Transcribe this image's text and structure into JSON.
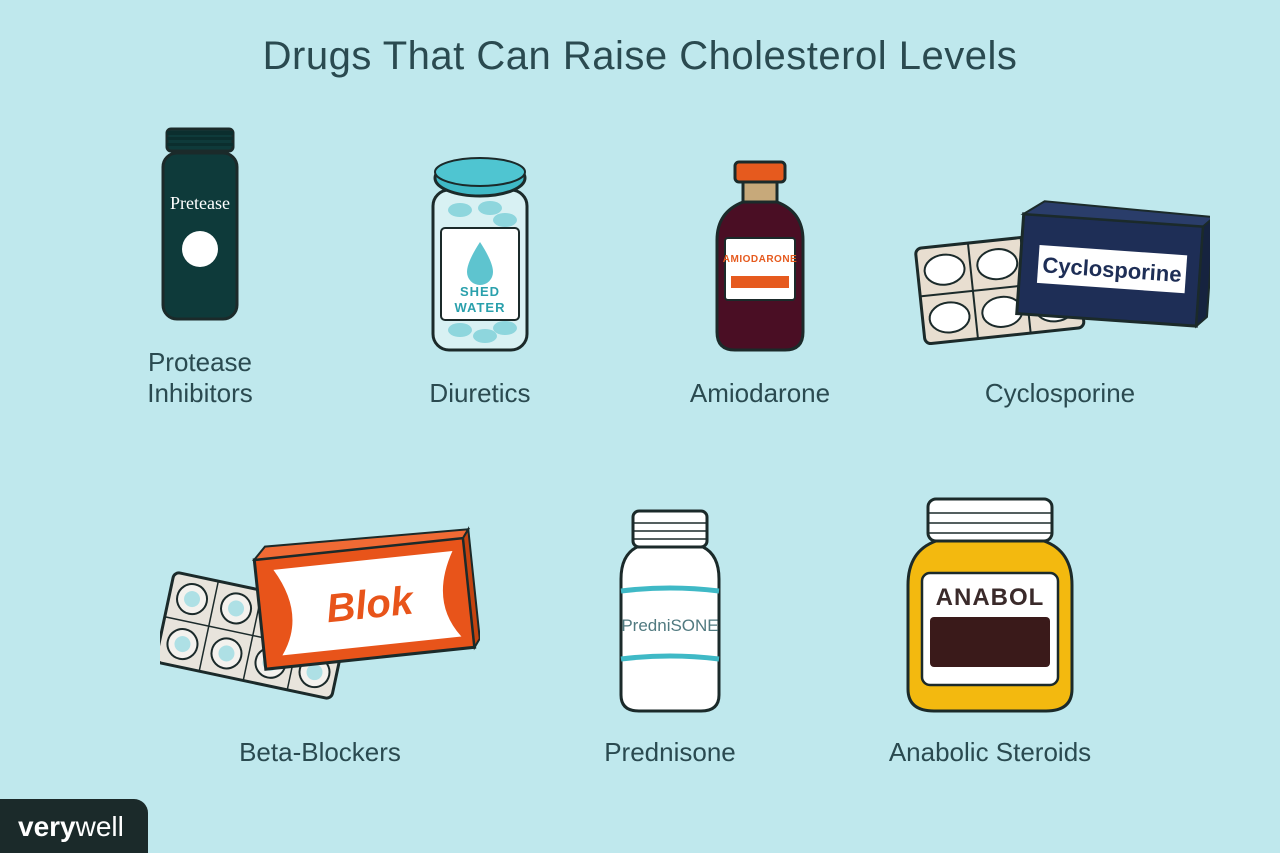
{
  "title": "Drugs That Can Raise Cholesterol Levels",
  "background_color": "#bfe8ed",
  "title_color": "#2a4a50",
  "caption_color": "#2a4a50",
  "title_fontsize": 40,
  "caption_fontsize": 26,
  "logo": {
    "bold": "very",
    "light": "well",
    "bg": "#1b2a2a",
    "fg": "#ffffff"
  },
  "items": [
    {
      "caption": "Protease\nInhibitors",
      "icon": "protease",
      "package_label": "Pretease",
      "colors": {
        "bottle": "#0e3a3a",
        "cap": "#0e3a3a",
        "label_text": "#ffffff",
        "circle": "#ffffff",
        "outline": "#1b2a2a"
      }
    },
    {
      "caption": "Diuretics",
      "icon": "diuretics",
      "package_label_line1": "SHED",
      "package_label_line2": "WATER",
      "colors": {
        "jar": "#d8f1f3",
        "cap": "#3fb9c6",
        "label_bg": "#ffffff",
        "text": "#2aa0ac",
        "drop": "#5ec4cf",
        "outline": "#1b2a2a"
      }
    },
    {
      "caption": "Amiodarone",
      "icon": "amiodarone",
      "package_label": "AMIODARONE",
      "colors": {
        "bottle": "#4a0e24",
        "cap": "#e65a1e",
        "neck": "#c7a97a",
        "label_bg": "#ffffff",
        "label_text": "#e65a1e",
        "bar": "#e65a1e",
        "outline": "#1b2a2a"
      }
    },
    {
      "caption": "Cyclosporine",
      "icon": "cyclosporine",
      "package_label": "Cyclosporine",
      "colors": {
        "box": "#1e2e56",
        "label_bg": "#ffffff",
        "label_text": "#1e2e56",
        "blister": "#e8ded0",
        "pill": "#ffffff",
        "outline": "#1b2a2a"
      }
    },
    {
      "caption": "Beta-Blockers",
      "icon": "betablockers",
      "package_label": "Blok",
      "colors": {
        "box": "#e8541a",
        "label_bg": "#ffffff",
        "label_text": "#e8541a",
        "blister": "#e8e4dc",
        "pill_ring": "#5ec4cf",
        "outline": "#1b2a2a"
      }
    },
    {
      "caption": "Prednisone",
      "icon": "prednisone",
      "package_label": "PredniSONE",
      "colors": {
        "bottle": "#ffffff",
        "cap": "#ffffff",
        "stripe": "#3fb9c6",
        "text": "#517a80",
        "outline": "#1b2a2a"
      }
    },
    {
      "caption": "Anabolic Steroids",
      "icon": "anabolic",
      "package_label": "ANABOL",
      "colors": {
        "jar": "#f3b90f",
        "cap": "#ffffff",
        "label_bg": "#ffffff",
        "label_text": "#3a2a2a",
        "dark_band": "#3a1a1a",
        "outline": "#1b2a2a"
      }
    }
  ]
}
